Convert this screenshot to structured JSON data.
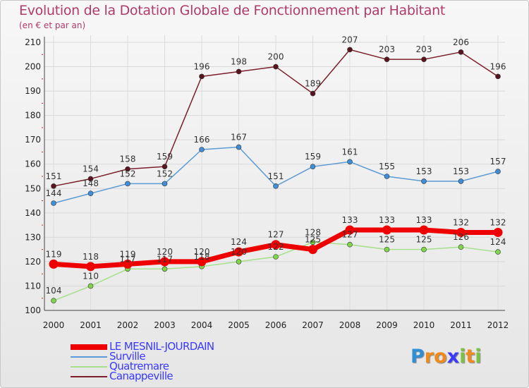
{
  "header": {
    "title": "Evolution de la Dotation Globale de Fonctionnement par Habitant",
    "subtitle": "(en € et par an)"
  },
  "logo": {
    "text": "Proxiti",
    "letters": [
      "P",
      "r",
      "o",
      "x",
      "i",
      "t",
      "i"
    ]
  },
  "chart_data": {
    "type": "line",
    "title": "Evolution de la Dotation Globale de Fonctionnement par Habitant",
    "subtitle": "(en € et par an)",
    "xlabel": "",
    "ylabel": "",
    "ylim": [
      100,
      210
    ],
    "yticks": [
      100,
      110,
      120,
      130,
      140,
      150,
      160,
      170,
      180,
      190,
      200,
      210
    ],
    "categories": [
      "2000",
      "2001",
      "2002",
      "2003",
      "2004",
      "2005",
      "2006",
      "2007",
      "2008",
      "2009",
      "2010",
      "2011",
      "2012"
    ],
    "legend_position": "bottom-left",
    "series": [
      {
        "name": "Canappeville",
        "color": "#7a1f2b",
        "marker": "#5a1420",
        "width": 1.5,
        "values": [
          151,
          154,
          158,
          159,
          196,
          198,
          200,
          189,
          207,
          203,
          203,
          206,
          196
        ]
      },
      {
        "name": "Surville",
        "color": "#5b9bd5",
        "marker": "#3f8fd8",
        "width": 1.5,
        "values": [
          144,
          148,
          152,
          152,
          166,
          167,
          151,
          159,
          161,
          155,
          153,
          153,
          157
        ]
      },
      {
        "name": "Quatremare",
        "color": "#a6e08a",
        "marker": "#7fd64a",
        "width": 1.5,
        "values": [
          104,
          110,
          117,
          117,
          118,
          120,
          122,
          128,
          127,
          125,
          125,
          126,
          124
        ]
      },
      {
        "name": "LE MESNIL-JOURDAIN",
        "color": "#ee0000",
        "marker": "#ee0000",
        "width": 7,
        "values": [
          119,
          118,
          119,
          120,
          120,
          124,
          127,
          125,
          133,
          133,
          133,
          132,
          132
        ]
      }
    ],
    "legend_order": [
      "LE MESNIL-JOURDAIN",
      "Surville",
      "Quatremare",
      "Canappeville"
    ]
  }
}
